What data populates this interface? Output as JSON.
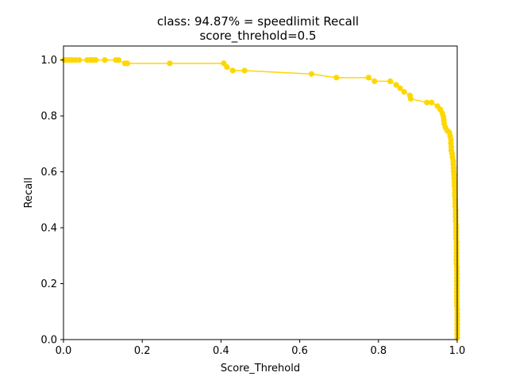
{
  "chart_data": {
    "type": "line",
    "title_line1": "class: 94.87% = speedlimit Recall",
    "title_line2": "score_threhold=0.5",
    "xlabel": "Score_Threhold",
    "ylabel": "Recall",
    "xlim": [
      0.0,
      1.0
    ],
    "ylim": [
      0.0,
      1.05
    ],
    "grid": false,
    "legend": "none",
    "x_ticks": [
      "0.0",
      "0.2",
      "0.4",
      "0.6",
      "0.8",
      "1.0"
    ],
    "y_ticks": [
      "0.0",
      "0.2",
      "0.4",
      "0.6",
      "0.8",
      "1.0"
    ],
    "series": [
      {
        "color": "#ffd700",
        "marker": "circle",
        "points": [
          [
            0.002,
            1.0
          ],
          [
            0.008,
            1.0
          ],
          [
            0.015,
            1.0
          ],
          [
            0.022,
            1.0
          ],
          [
            0.03,
            1.0
          ],
          [
            0.04,
            1.0
          ],
          [
            0.06,
            1.0
          ],
          [
            0.068,
            1.0
          ],
          [
            0.075,
            1.0
          ],
          [
            0.082,
            1.0
          ],
          [
            0.105,
            1.0
          ],
          [
            0.133,
            1.0
          ],
          [
            0.14,
            1.0
          ],
          [
            0.156,
            0.988
          ],
          [
            0.162,
            0.988
          ],
          [
            0.27,
            0.988
          ],
          [
            0.407,
            0.988
          ],
          [
            0.415,
            0.975
          ],
          [
            0.43,
            0.962
          ],
          [
            0.46,
            0.962
          ],
          [
            0.63,
            0.95
          ],
          [
            0.693,
            0.937
          ],
          [
            0.775,
            0.937
          ],
          [
            0.79,
            0.924
          ],
          [
            0.83,
            0.924
          ],
          [
            0.845,
            0.911
          ],
          [
            0.855,
            0.899
          ],
          [
            0.865,
            0.886
          ],
          [
            0.88,
            0.873
          ],
          [
            0.882,
            0.861
          ],
          [
            0.923,
            0.848
          ],
          [
            0.935,
            0.848
          ],
          [
            0.95,
            0.835
          ],
          [
            0.957,
            0.823
          ],
          [
            0.962,
            0.81
          ],
          [
            0.965,
            0.797
          ],
          [
            0.966,
            0.785
          ],
          [
            0.967,
            0.772
          ],
          [
            0.97,
            0.759
          ],
          [
            0.975,
            0.747
          ],
          [
            0.98,
            0.741
          ],
          [
            0.982,
            0.728
          ],
          [
            0.984,
            0.715
          ],
          [
            0.984,
            0.703
          ],
          [
            0.985,
            0.69
          ],
          [
            0.985,
            0.677
          ],
          [
            0.987,
            0.665
          ],
          [
            0.988,
            0.652
          ],
          [
            0.99,
            0.639
          ],
          [
            0.99,
            0.627
          ],
          [
            0.991,
            0.614
          ],
          [
            0.991,
            0.601
          ],
          [
            0.992,
            0.589
          ],
          [
            0.992,
            0.576
          ],
          [
            0.993,
            0.563
          ],
          [
            0.993,
            0.551
          ],
          [
            0.994,
            0.538
          ],
          [
            0.994,
            0.525
          ],
          [
            0.994,
            0.513
          ],
          [
            0.995,
            0.5
          ],
          [
            0.995,
            0.487
          ],
          [
            0.995,
            0.475
          ],
          [
            0.996,
            0.462
          ],
          [
            0.996,
            0.449
          ],
          [
            0.996,
            0.437
          ],
          [
            0.996,
            0.424
          ],
          [
            0.997,
            0.411
          ],
          [
            0.997,
            0.399
          ],
          [
            0.997,
            0.386
          ],
          [
            0.997,
            0.373
          ],
          [
            0.997,
            0.361
          ],
          [
            0.998,
            0.348
          ],
          [
            0.998,
            0.335
          ],
          [
            0.998,
            0.323
          ],
          [
            0.998,
            0.31
          ],
          [
            0.998,
            0.297
          ],
          [
            0.998,
            0.285
          ],
          [
            0.998,
            0.272
          ],
          [
            0.999,
            0.259
          ],
          [
            0.999,
            0.247
          ],
          [
            0.999,
            0.234
          ],
          [
            0.999,
            0.221
          ],
          [
            0.999,
            0.209
          ],
          [
            0.999,
            0.196
          ],
          [
            0.999,
            0.183
          ],
          [
            0.999,
            0.171
          ],
          [
            0.999,
            0.158
          ],
          [
            0.999,
            0.146
          ],
          [
            0.999,
            0.133
          ],
          [
            0.999,
            0.12
          ],
          [
            1.0,
            0.108
          ],
          [
            1.0,
            0.095
          ],
          [
            1.0,
            0.082
          ],
          [
            1.0,
            0.07
          ],
          [
            1.0,
            0.057
          ],
          [
            1.0,
            0.044
          ],
          [
            1.0,
            0.032
          ],
          [
            1.0,
            0.019
          ],
          [
            1.0,
            0.006
          ]
        ]
      }
    ]
  }
}
